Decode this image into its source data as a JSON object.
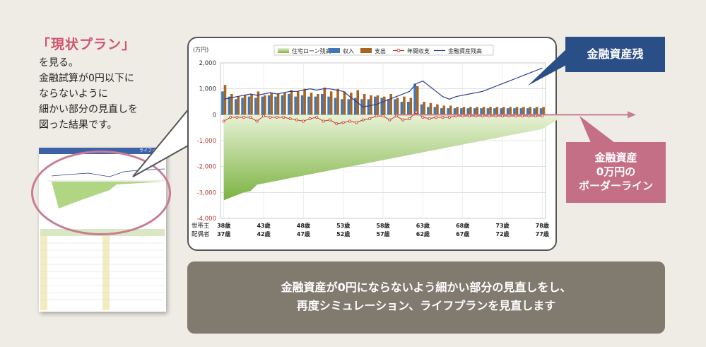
{
  "intro": {
    "title": "「現状プラン」",
    "lines": [
      "を見る。",
      "金融試算が0円以下に",
      "ならないように",
      "細かい部分の見直しを",
      "図った結果です。"
    ]
  },
  "thumbnail": {
    "header": "ライフイベ"
  },
  "callouts": {
    "asset_balance": "金融資産残",
    "border_line": [
      "金融資産",
      "0万円の",
      "ボーダーライン"
    ]
  },
  "summary": [
    "金融資産が0円にならないよう細かい部分の見直しをし、",
    "再度シミュレーション、ライフプランを見直します"
  ],
  "colors": {
    "loan": "#7cb342",
    "income": "#3f78b5",
    "expense": "#a8651f",
    "annual": "#c0392b",
    "asset": "#2b3e8e",
    "arrow": "#c97c93",
    "navy": "#2a4f86",
    "pink": "#c56f87"
  },
  "chart_data": {
    "type": "bar",
    "unit_label": "(万円)",
    "ylim": [
      -4000,
      2000
    ],
    "yticks": [
      2000,
      1000,
      0,
      -1000,
      -2000,
      -3000,
      -4000
    ],
    "ytick_labels": [
      "2,000",
      "1,000",
      "0",
      "-1,000",
      "-2,000",
      "-3,000",
      "-4,000"
    ],
    "grid": true,
    "legend_position": "top",
    "row_labels": [
      "世帯主",
      "配偶者"
    ],
    "householder_ages": [
      "38歳",
      "43歳",
      "48歳",
      "53歳",
      "58歳",
      "63歳",
      "68歳",
      "73歳",
      "78歳"
    ],
    "spouse_ages": [
      "37歳",
      "42歳",
      "47歳",
      "52歳",
      "57歳",
      "62歳",
      "67歳",
      "72歳",
      "77歳"
    ],
    "x_start": 38,
    "x_end": 78,
    "series": [
      {
        "name": "住宅ローン残高",
        "kind": "area",
        "values": [
          -3300,
          -3200,
          -3100,
          -3000,
          -2950,
          -2700,
          -2650,
          -2600,
          -2550,
          -2500,
          -2450,
          -2400,
          -2350,
          -2300,
          -2250,
          -2200,
          -2150,
          -2100,
          -2050,
          -2000,
          -1950,
          -1900,
          -1850,
          -1800,
          -1750,
          -1700,
          -1650,
          -1600,
          -1550,
          -1500,
          -1450,
          -1400,
          -1350,
          -1300,
          -1250,
          -1200,
          -1150,
          -1100,
          -1050,
          -1000,
          -950,
          -900,
          -850,
          -800,
          -750,
          -700,
          -650,
          -600,
          -550
        ]
      },
      {
        "name": "収入",
        "kind": "bar",
        "values": [
          900,
          700,
          600,
          650,
          700,
          650,
          700,
          750,
          700,
          750,
          800,
          700,
          750,
          700,
          700,
          800,
          700,
          650,
          600,
          600,
          650,
          600,
          600,
          700,
          650,
          600,
          600,
          500,
          500,
          1200,
          400,
          300,
          300,
          250,
          250,
          250,
          250,
          250,
          250,
          250,
          250,
          250,
          250,
          250,
          250,
          250,
          250,
          250,
          250
        ]
      },
      {
        "name": "支出",
        "kind": "bar",
        "values": [
          1150,
          800,
          700,
          750,
          800,
          900,
          750,
          850,
          800,
          850,
          950,
          900,
          1000,
          850,
          800,
          1050,
          900,
          1000,
          900,
          850,
          950,
          800,
          750,
          750,
          700,
          800,
          650,
          700,
          650,
          1100,
          500,
          450,
          400,
          350,
          350,
          300,
          300,
          300,
          300,
          300,
          300,
          300,
          300,
          300,
          300,
          300,
          300,
          300,
          300
        ]
      },
      {
        "name": "年間収支",
        "kind": "line",
        "values": [
          -250,
          -100,
          -100,
          -100,
          -100,
          -250,
          -50,
          -100,
          -100,
          -100,
          -150,
          -200,
          -250,
          -150,
          -100,
          -250,
          -200,
          -350,
          -300,
          -250,
          -300,
          -200,
          -150,
          -50,
          -50,
          -200,
          -50,
          -200,
          -150,
          100,
          -100,
          -150,
          -100,
          -100,
          -100,
          -50,
          -50,
          -50,
          -50,
          -50,
          -50,
          -50,
          -50,
          -50,
          -50,
          -50,
          -50,
          -50,
          -50
        ]
      },
      {
        "name": "金融資産残高",
        "kind": "line",
        "values": [
          600,
          650,
          700,
          750,
          800,
          750,
          800,
          850,
          800,
          850,
          900,
          900,
          950,
          1000,
          950,
          1000,
          1000,
          950,
          900,
          700,
          500,
          300,
          350,
          400,
          500,
          600,
          700,
          800,
          900,
          1200,
          1300,
          1100,
          900,
          700,
          600,
          700,
          750,
          800,
          850,
          900,
          1000,
          1100,
          1200,
          1300,
          1400,
          1500,
          1600,
          1700,
          1800
        ]
      }
    ]
  }
}
